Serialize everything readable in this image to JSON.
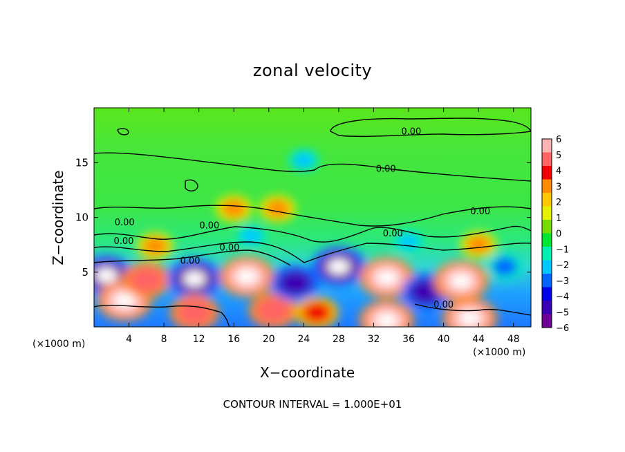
{
  "chart_data": {
    "type": "heatmap",
    "title": "zonal velocity",
    "xlabel": "X−coordinate",
    "ylabel": "Z−coordinate",
    "x_unit": "(×1000 m)",
    "footnote": "CONTOUR INTERVAL = 1.000E+01",
    "xlim": [
      0,
      50
    ],
    "ylim": [
      0,
      20
    ],
    "x_ticks": [
      4,
      8,
      12,
      16,
      20,
      24,
      28,
      32,
      36,
      40,
      44,
      48
    ],
    "y_ticks": [
      5,
      10,
      15
    ],
    "colorbar": {
      "min": -6,
      "max": 6,
      "tick_labels": [
        "6",
        "5",
        "4",
        "3",
        "2",
        "1",
        "0",
        "−1",
        "−2",
        "−3",
        "−4",
        "−5",
        "−6"
      ],
      "colors": [
        "#ffb4b4",
        "#ff6464",
        "#f00000",
        "#ff8c00",
        "#ffc800",
        "#e6f000",
        "#78dc00",
        "#00e632",
        "#00f0b4",
        "#00c8ff",
        "#0064ff",
        "#0000e6",
        "#3c00b4",
        "#6e0096"
      ]
    },
    "contour_labels": [
      {
        "text": "0.00",
        "x": 36.3,
        "z": 17.8
      },
      {
        "text": "0.00",
        "x": 33.4,
        "z": 14.4
      },
      {
        "text": "0.00",
        "x": 44.2,
        "z": 10.5
      },
      {
        "text": "0.00",
        "x": 3.5,
        "z": 9.5
      },
      {
        "text": "0.00",
        "x": 13.2,
        "z": 9.2
      },
      {
        "text": "0.00",
        "x": 34.2,
        "z": 8.5
      },
      {
        "text": "0.00",
        "x": 3.4,
        "z": 7.8
      },
      {
        "text": "0.00",
        "x": 15.5,
        "z": 7.2
      },
      {
        "text": "0.00",
        "x": 11.0,
        "z": 6.0
      },
      {
        "text": "0.00",
        "x": 40.0,
        "z": 2.0
      }
    ],
    "features": [
      {
        "x": 1.4,
        "z": 4.7,
        "v": -6
      },
      {
        "x": 3.5,
        "z": 2.4,
        "v": 6
      },
      {
        "x": 6.0,
        "z": 4.3,
        "v": 5
      },
      {
        "x": 11.5,
        "z": 4.4,
        "v": -6
      },
      {
        "x": 11.5,
        "z": 1.3,
        "v": 5
      },
      {
        "x": 17.5,
        "z": 4.6,
        "v": 6
      },
      {
        "x": 20.5,
        "z": 1.5,
        "v": 5
      },
      {
        "x": 23.0,
        "z": 4.0,
        "v": -5
      },
      {
        "x": 28.0,
        "z": 5.5,
        "v": -6
      },
      {
        "x": 25.5,
        "z": 1.3,
        "v": 4
      },
      {
        "x": 33.5,
        "z": 4.5,
        "v": 6
      },
      {
        "x": 33.5,
        "z": 0.6,
        "v": 6
      },
      {
        "x": 38.0,
        "z": 3.2,
        "v": -5
      },
      {
        "x": 42.0,
        "z": 4.2,
        "v": 6
      },
      {
        "x": 43.0,
        "z": 0.8,
        "v": 6
      },
      {
        "x": 47.0,
        "z": 5.5,
        "v": -3
      },
      {
        "x": 16.0,
        "z": 10.8,
        "v": 3
      },
      {
        "x": 21.0,
        "z": 10.8,
        "v": 3
      },
      {
        "x": 7.0,
        "z": 7.4,
        "v": 3
      },
      {
        "x": 24.0,
        "z": 15.2,
        "v": -2
      },
      {
        "x": 18.0,
        "z": 8.3,
        "v": -2
      },
      {
        "x": 36.0,
        "z": 7.8,
        "v": -2
      },
      {
        "x": 44.0,
        "z": 7.5,
        "v": 3
      }
    ]
  }
}
